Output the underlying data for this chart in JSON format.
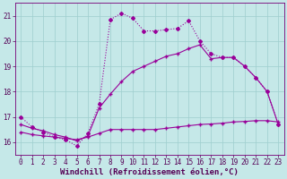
{
  "xlabel": "Windchill (Refroidissement éolien,°C)",
  "bg_color": "#c5e8e8",
  "grid_color": "#9ecece",
  "line_color": "#990099",
  "xlim": [
    -0.5,
    23.5
  ],
  "ylim": [
    15.5,
    21.5
  ],
  "yticks": [
    16,
    17,
    18,
    19,
    20,
    21
  ],
  "xticks": [
    0,
    1,
    2,
    3,
    4,
    5,
    6,
    7,
    8,
    9,
    10,
    11,
    12,
    13,
    14,
    15,
    16,
    17,
    18,
    19,
    20,
    21,
    22,
    23
  ],
  "line1_x": [
    0,
    1,
    2,
    3,
    4,
    5,
    6,
    7,
    8,
    9,
    10,
    11,
    12,
    13,
    14,
    15,
    16,
    17,
    18,
    19,
    20,
    21,
    22,
    23
  ],
  "line1_y": [
    17.0,
    16.6,
    16.4,
    16.2,
    16.1,
    15.85,
    16.35,
    17.5,
    20.85,
    21.1,
    20.9,
    20.4,
    20.4,
    20.45,
    20.5,
    20.8,
    20.0,
    19.5,
    19.35,
    19.35,
    19.0,
    18.55,
    18.0,
    16.7
  ],
  "line2_x": [
    0,
    1,
    2,
    3,
    4,
    5,
    6,
    7,
    8,
    9,
    10,
    11,
    12,
    13,
    14,
    15,
    16,
    17,
    18,
    19,
    20,
    21,
    22,
    23
  ],
  "line2_y": [
    16.4,
    16.3,
    16.25,
    16.2,
    16.15,
    16.1,
    16.2,
    16.35,
    16.5,
    16.5,
    16.5,
    16.5,
    16.5,
    16.55,
    16.6,
    16.65,
    16.7,
    16.72,
    16.75,
    16.8,
    16.82,
    16.85,
    16.85,
    16.8
  ],
  "line3_x": [
    0,
    1,
    2,
    3,
    4,
    5,
    6,
    7,
    8,
    9,
    10,
    11,
    12,
    13,
    14,
    15,
    16,
    17,
    18,
    19,
    20,
    21,
    22,
    23
  ],
  "line3_y": [
    16.7,
    16.55,
    16.45,
    16.3,
    16.2,
    16.05,
    16.25,
    17.35,
    17.9,
    18.4,
    18.8,
    19.0,
    19.2,
    19.4,
    19.5,
    19.7,
    19.85,
    19.3,
    19.35,
    19.35,
    19.0,
    18.55,
    18.0,
    16.7
  ],
  "tick_fontsize": 5.5,
  "label_fontsize": 6.5,
  "tick_color": "#550055",
  "spine_color": "#770077"
}
